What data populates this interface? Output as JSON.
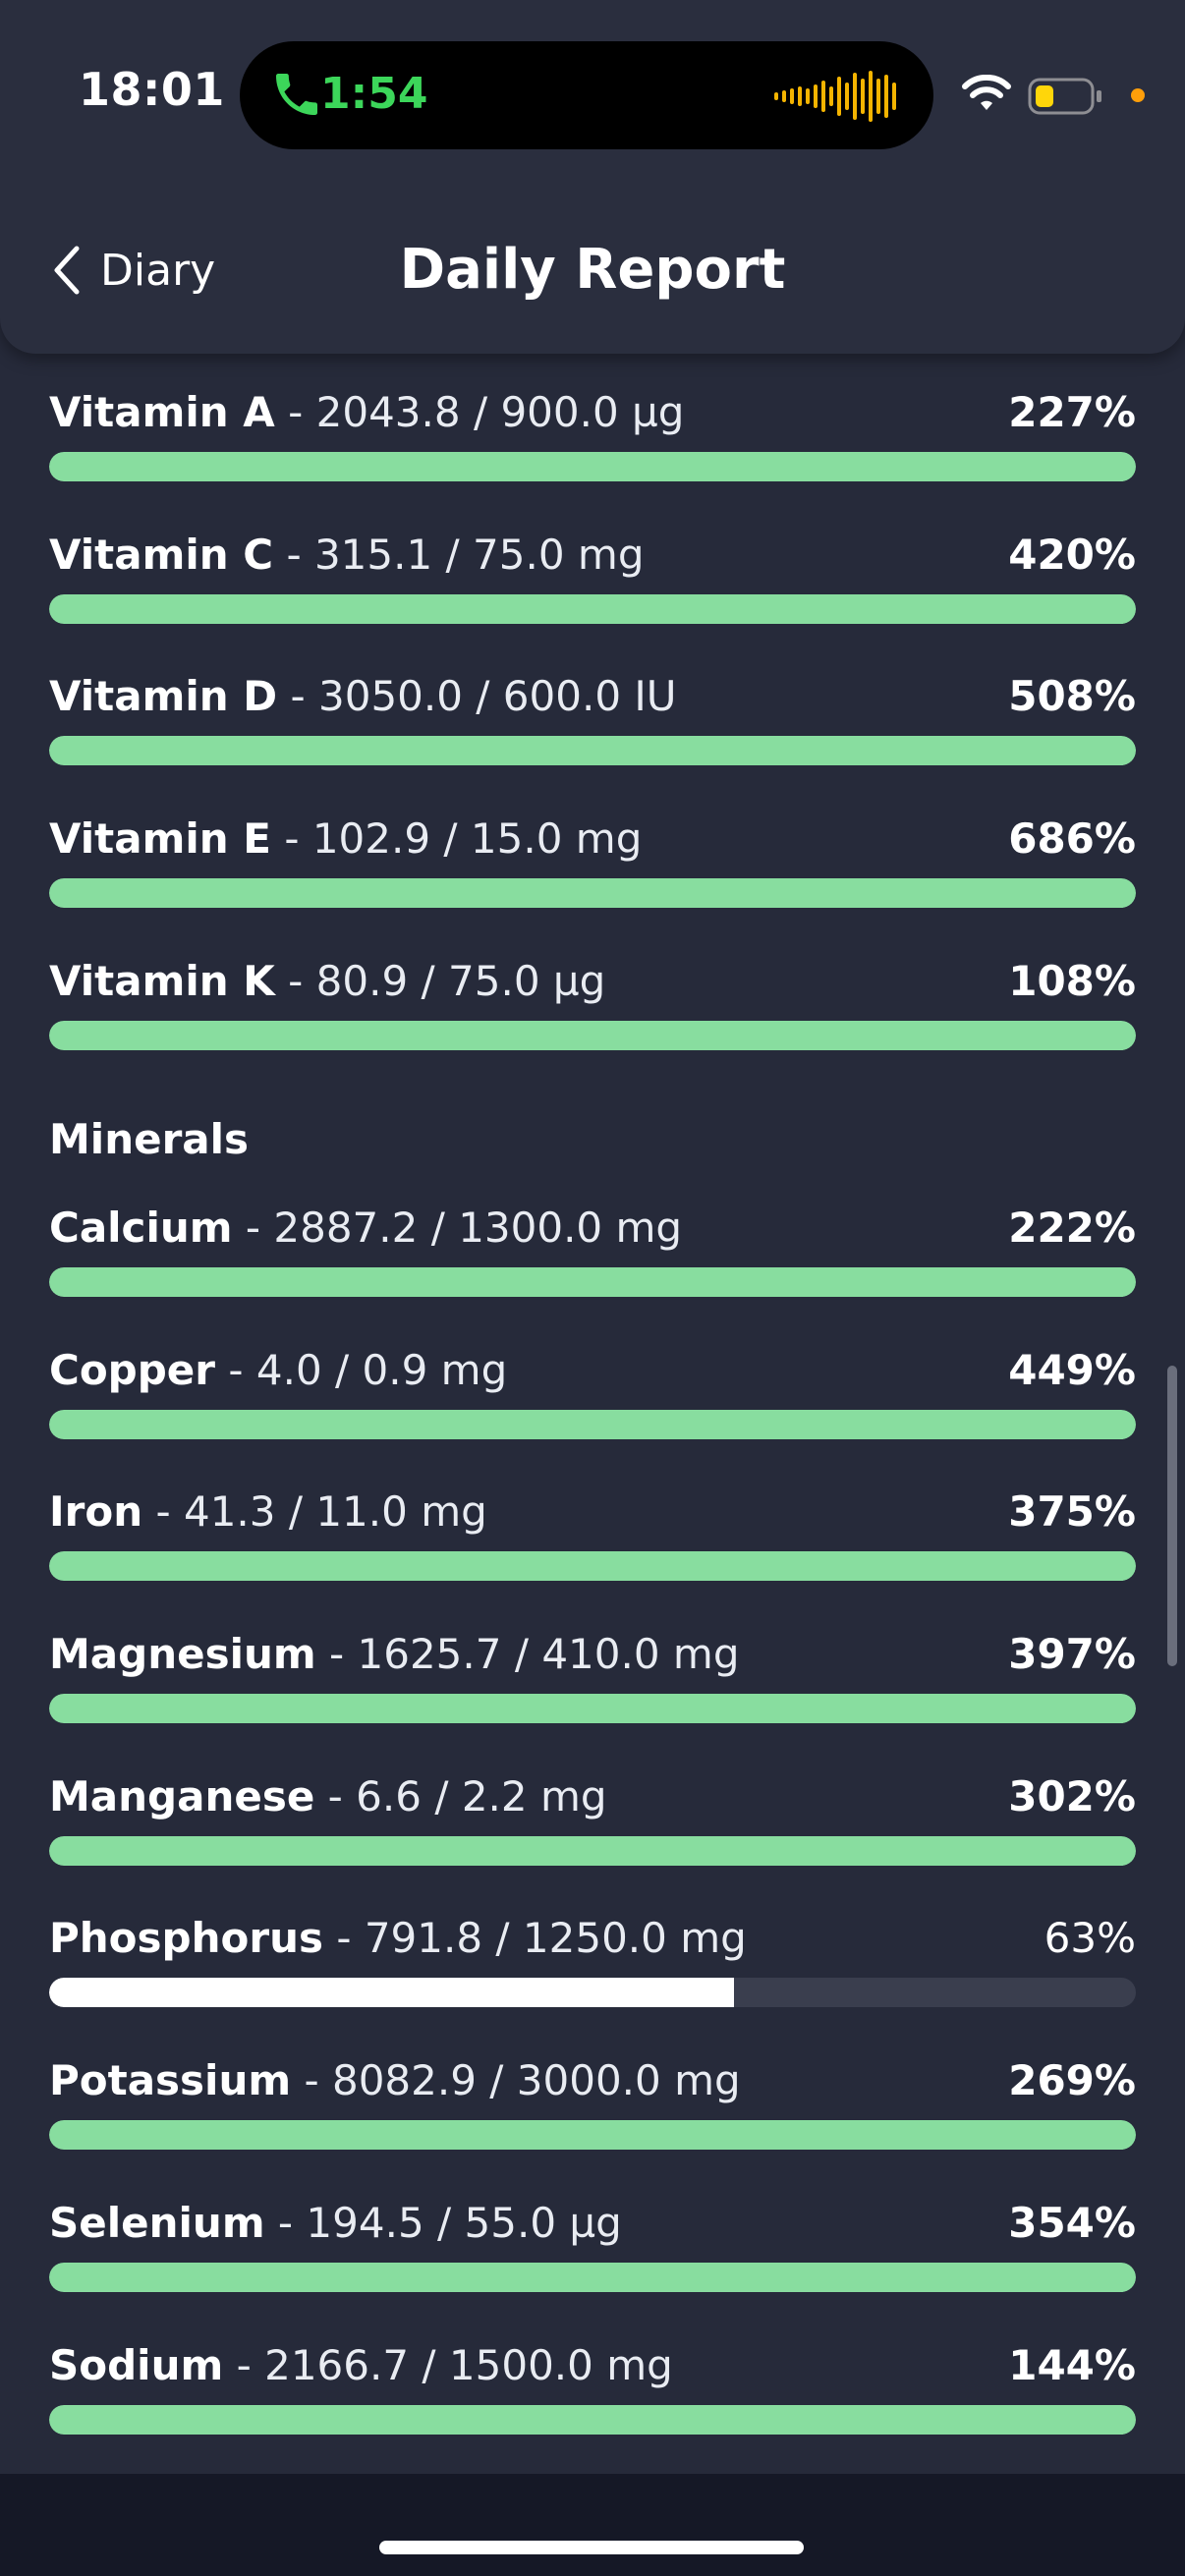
{
  "status_bar": {
    "time": "18:01",
    "call_duration": "1:54"
  },
  "nav": {
    "back_label": "Diary",
    "title": "Daily Report"
  },
  "vitamins": [
    {
      "name": "Vitamin A",
      "detail": " - 2043.8 / 900.0 µg",
      "percent": "227%",
      "fraction": 1.0
    },
    {
      "name": "Vitamin C",
      "detail": " - 315.1 / 75.0 mg",
      "percent": "420%",
      "fraction": 1.0
    },
    {
      "name": "Vitamin D",
      "detail": " - 3050.0 / 600.0 IU",
      "percent": "508%",
      "fraction": 1.0
    },
    {
      "name": "Vitamin E",
      "detail": " - 102.9 / 15.0 mg",
      "percent": "686%",
      "fraction": 1.0
    },
    {
      "name": "Vitamin K",
      "detail": " - 80.9 / 75.0 µg",
      "percent": "108%",
      "fraction": 1.0
    }
  ],
  "minerals_title": "Minerals",
  "minerals": [
    {
      "name": "Calcium",
      "detail": " - 2887.2 / 1300.0 mg",
      "percent": "222%",
      "fraction": 1.0
    },
    {
      "name": "Copper",
      "detail": " - 4.0 / 0.9 mg",
      "percent": "449%",
      "fraction": 1.0
    },
    {
      "name": "Iron",
      "detail": " - 41.3 / 11.0 mg",
      "percent": "375%",
      "fraction": 1.0
    },
    {
      "name": "Magnesium",
      "detail": " - 1625.7 / 410.0 mg",
      "percent": "397%",
      "fraction": 1.0
    },
    {
      "name": "Manganese",
      "detail": " - 6.6 / 2.2 mg",
      "percent": "302%",
      "fraction": 1.0
    },
    {
      "name": "Phosphorus",
      "detail": " - 791.8 / 1250.0 mg",
      "percent": "63%",
      "fraction": 0.63
    },
    {
      "name": "Potassium",
      "detail": " - 8082.9 / 3000.0 mg",
      "percent": "269%",
      "fraction": 1.0
    },
    {
      "name": "Selenium",
      "detail": " - 194.5 / 55.0 µg",
      "percent": "354%",
      "fraction": 1.0
    },
    {
      "name": "Sodium",
      "detail": " - 2166.7 / 1500.0 mg",
      "percent": "144%",
      "fraction": 1.0
    }
  ],
  "colors": {
    "background": "#262a3a",
    "header": "#2a2e3e",
    "bar_complete": "#88dd9f",
    "bar_partial": "#ffffff",
    "bar_track": "#3a3e4e",
    "call_green": "#3cd65a",
    "privacy_dot": "#ff9f0a"
  },
  "icons": {
    "back": "chevron-left-icon",
    "call": "phone-icon",
    "audio": "waveform-icon",
    "wifi": "wifi-icon",
    "battery": "battery-low-icon"
  }
}
